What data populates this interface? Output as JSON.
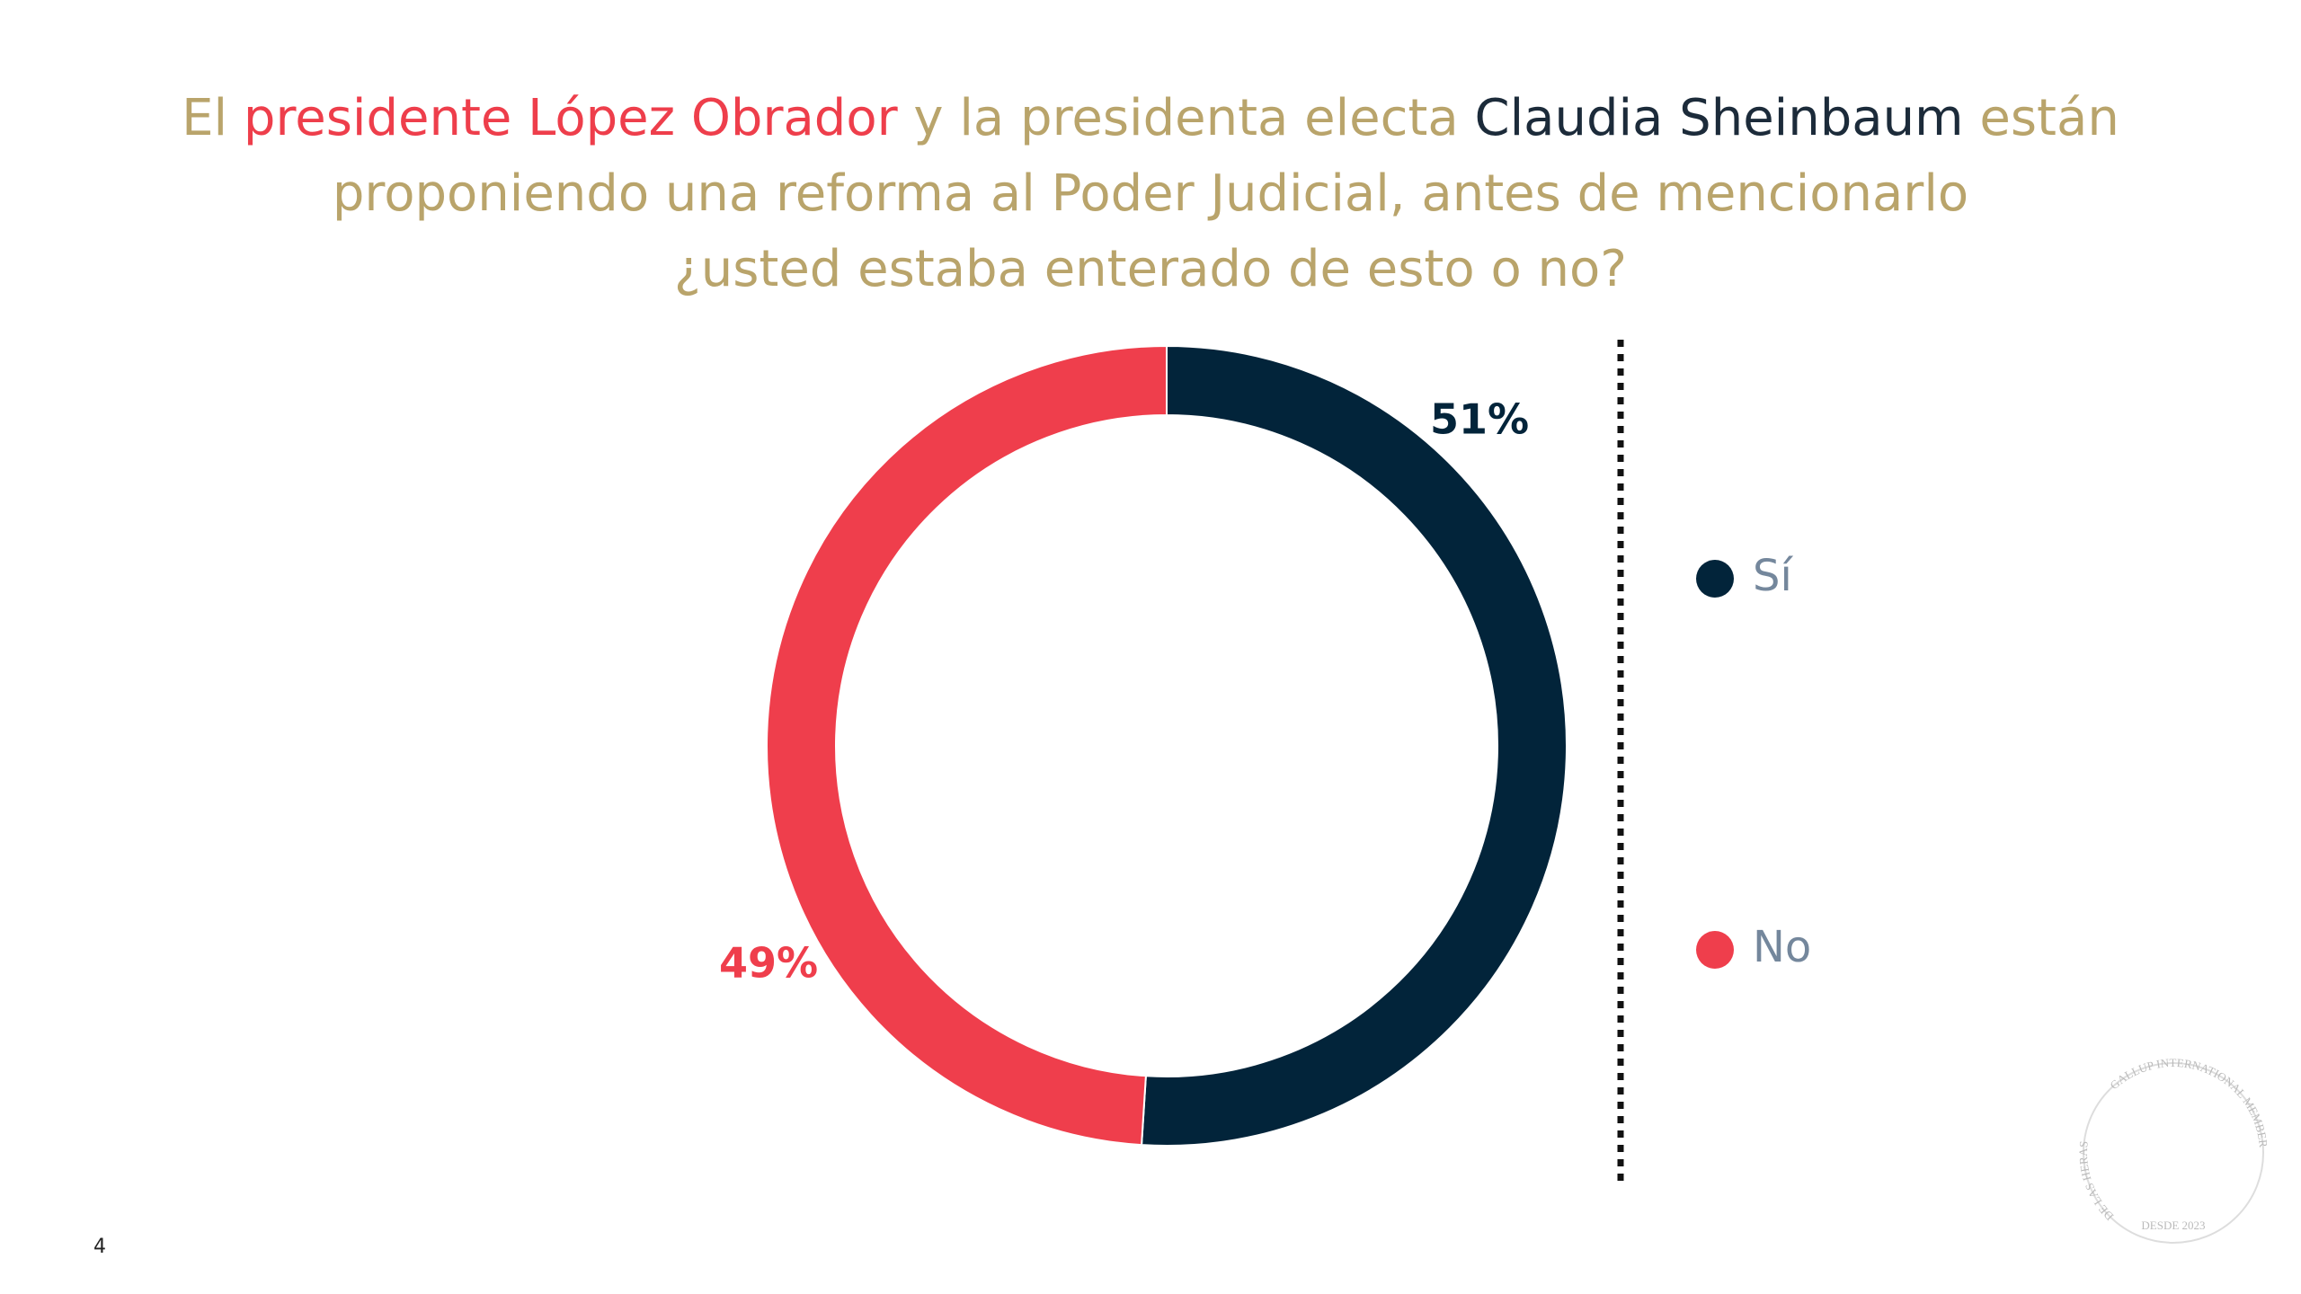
{
  "chart_data": {
    "type": "donut",
    "title_lines": [
      [
        {
          "text": "El ",
          "color": "#b9a46b"
        },
        {
          "text": "presidente López Obrador",
          "color": "#ee3e4b"
        },
        {
          "text": " y la presidenta electa ",
          "color": "#b9a46b"
        },
        {
          "text": "Claudia Sheinbaum",
          "color": "#1c2b3a"
        },
        {
          "text": " están",
          "color": "#b9a46b"
        }
      ],
      [
        {
          "text": "proponiendo una reforma al Poder Judicial, antes de mencionarlo",
          "color": "#b9a46b"
        }
      ],
      [
        {
          "text": "¿usted estaba enterado de esto o no?",
          "color": "#b9a46b"
        }
      ]
    ],
    "categories": [
      "Sí",
      "No"
    ],
    "values": [
      51,
      49
    ],
    "value_labels": [
      "51%",
      "49%"
    ],
    "colors": [
      "#02243a",
      "#ef3e4c"
    ],
    "page_number": "4",
    "logo": {
      "top": "GALLUP INTERNATIONAL MEMBER",
      "left": "DE LAS HERAS",
      "bottom": "DESDE 2023"
    }
  }
}
